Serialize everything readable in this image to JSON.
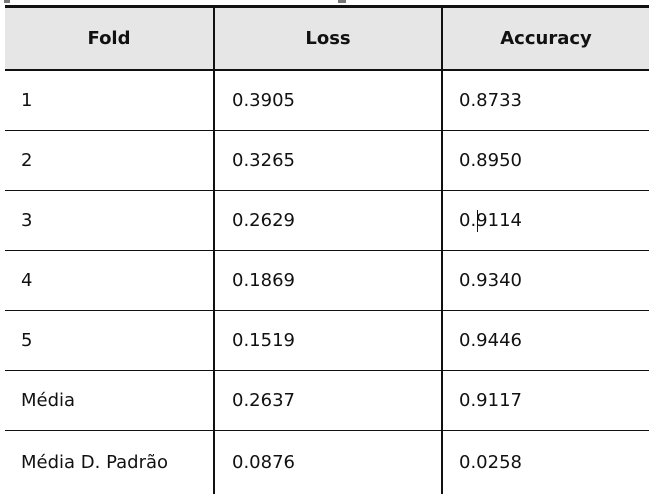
{
  "table": {
    "columns": [
      "Fold",
      "Loss",
      "Accuracy"
    ],
    "rows": [
      [
        "1",
        "0.3905",
        "0.8733"
      ],
      [
        "2",
        "0.3265",
        "0.8950"
      ],
      [
        "3",
        "0.2629",
        "0.9114"
      ],
      [
        "4",
        "0.1869",
        "0.9340"
      ],
      [
        "5",
        "0.1519",
        "0.9446"
      ],
      [
        "Média",
        "0.2637",
        "0.9117"
      ],
      [
        "Média D. Padrão",
        "0.0876",
        "0.0258"
      ]
    ]
  }
}
